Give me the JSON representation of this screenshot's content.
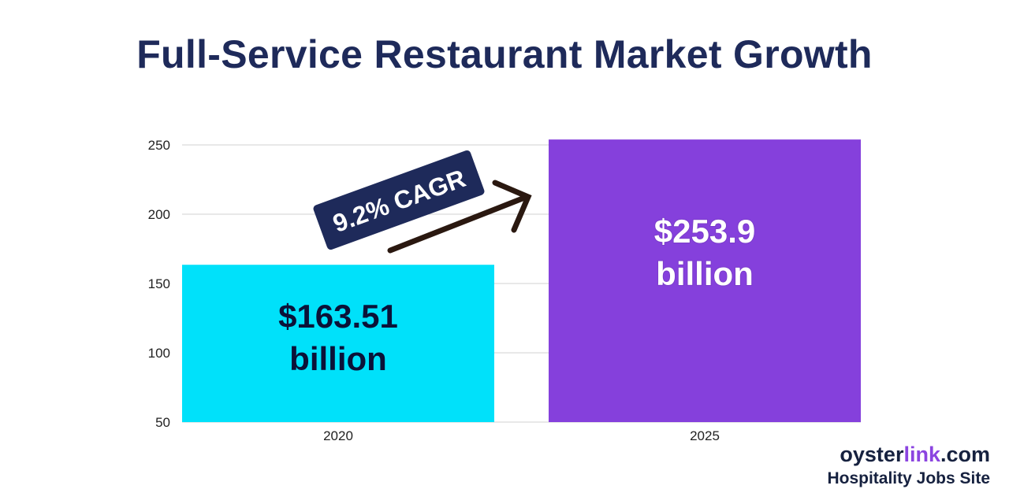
{
  "title": "Full-Service Restaurant Market Growth",
  "colors": {
    "title": "#1e2a5a",
    "bar_2020": "#00e1fa",
    "bar_2025": "#8540dc",
    "annotation_bg": "#1e2a5a",
    "arrow": "#2a1810",
    "grid": "#d0d0d0"
  },
  "chart_data": {
    "type": "bar",
    "categories": [
      "2020",
      "2025"
    ],
    "values": [
      163.51,
      253.9
    ],
    "bar_labels": [
      [
        "$163.51",
        "billion"
      ],
      [
        "$253.9",
        "billion"
      ]
    ],
    "ylim": [
      50,
      250
    ],
    "yticks": [
      50,
      100,
      150,
      200,
      250
    ],
    "grid": true,
    "annotation": "9.2% CAGR"
  },
  "logo": {
    "prefix": "oyster",
    "accent": "link",
    "suffix": ".com",
    "tagline": "Hospitality Jobs Site"
  }
}
